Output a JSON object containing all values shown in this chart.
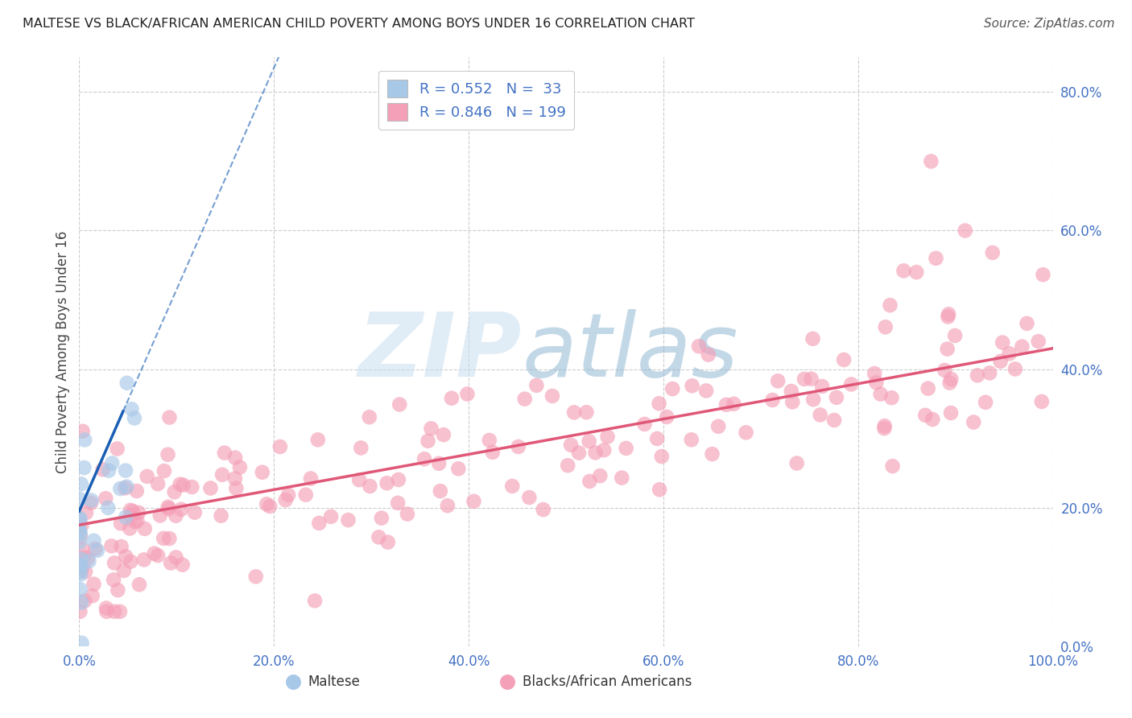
{
  "title": "MALTESE VS BLACK/AFRICAN AMERICAN CHILD POVERTY AMONG BOYS UNDER 16 CORRELATION CHART",
  "source": "Source: ZipAtlas.com",
  "ylabel": "Child Poverty Among Boys Under 16",
  "xlim": [
    0.0,
    1.0
  ],
  "ylim": [
    0.0,
    0.85
  ],
  "yticks": [
    0.0,
    0.2,
    0.4,
    0.6,
    0.8
  ],
  "xticks": [
    0.0,
    0.2,
    0.4,
    0.6,
    0.8,
    1.0
  ],
  "maltese_R": 0.552,
  "maltese_N": 33,
  "black_R": 0.846,
  "black_N": 199,
  "maltese_color": "#a8c8e8",
  "black_color": "#f4a0b8",
  "maltese_line_color": "#1a5fb4",
  "black_line_color": "#e05878",
  "background_color": "#ffffff",
  "grid_color": "#cccccc",
  "tick_label_color": "#4472c4",
  "ylabel_color": "#444444",
  "legend_label_color": "#4472c4",
  "watermark_zip_color": "#c8ddf0",
  "watermark_atlas_color": "#90b8d4"
}
